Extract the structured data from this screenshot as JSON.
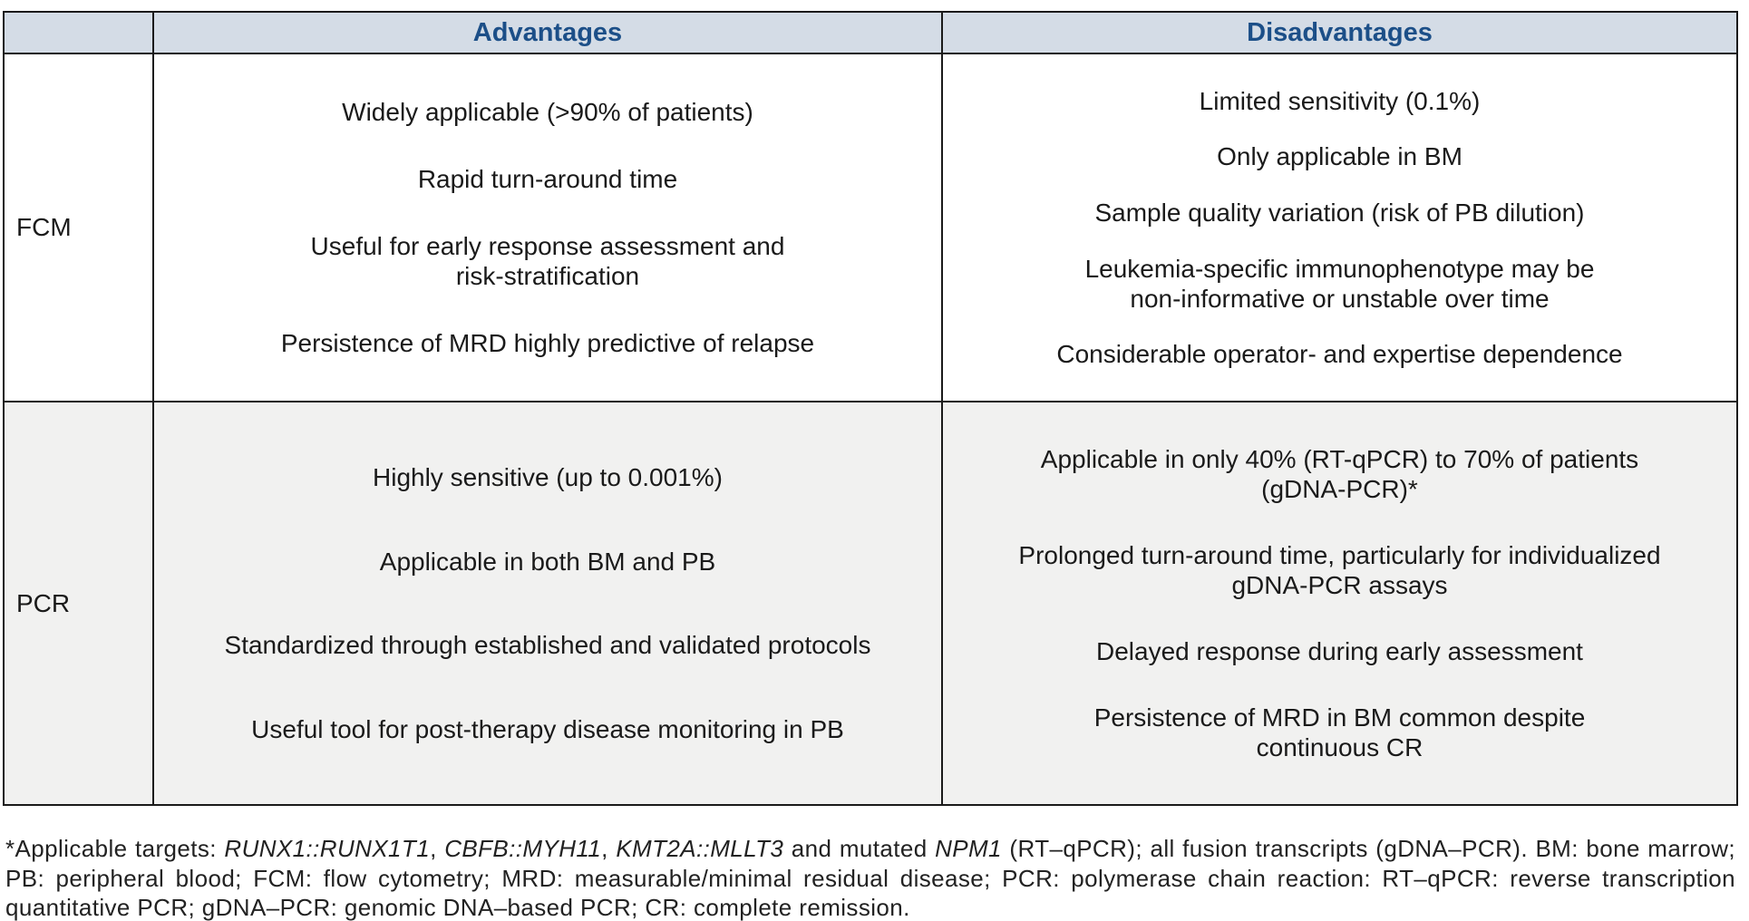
{
  "table": {
    "header": {
      "corner": "",
      "advantages": "Advantages",
      "disadvantages": "Disadvantages"
    },
    "rows": [
      {
        "label": "FCM",
        "advantages": [
          "Widely applicable (>90% of patients)",
          "Rapid turn-around time",
          "Useful for early response assessment and\nrisk-stratification",
          "Persistence of MRD highly predictive of relapse"
        ],
        "disadvantages": [
          "Limited sensitivity (0.1%)",
          "Only applicable in BM",
          "Sample quality variation (risk of PB dilution)",
          "Leukemia-specific immunophenotype may be\nnon-informative or unstable over time",
          "Considerable operator- and expertise dependence"
        ]
      },
      {
        "label": "PCR",
        "advantages": [
          "Highly sensitive (up to 0.001%)",
          "Applicable in both BM and PB",
          "Standardized through established and validated protocols",
          "Useful tool for post-therapy disease monitoring in PB"
        ],
        "disadvantages": [
          "Applicable in only 40% (RT-qPCR) to 70% of patients\n(gDNA-PCR)*",
          "Prolonged turn-around time, particularly for individualized\ngDNA-PCR assays",
          "Delayed response during early assessment",
          "Persistence of MRD in BM common despite\ncontinuous CR"
        ]
      }
    ]
  },
  "footnote": {
    "segments": [
      {
        "text": "*Applicable targets: ",
        "italic": false
      },
      {
        "text": "RUNX1::RUNX1T1",
        "italic": true
      },
      {
        "text": ", ",
        "italic": false
      },
      {
        "text": "CBFB::MYH11",
        "italic": true
      },
      {
        "text": ", ",
        "italic": false
      },
      {
        "text": "KMT2A::MLLT3",
        "italic": true
      },
      {
        "text": " and mutated ",
        "italic": false
      },
      {
        "text": "NPM1",
        "italic": true
      },
      {
        "text": " (RT–qPCR); all fusion transcripts (gDNA–PCR). BM: bone marrow; PB: peripheral blood; FCM: flow cytometry; MRD: measurable/minimal residual disease; PCR: polymerase chain reaction: RT–qPCR: reverse transcription quantitative PCR; gDNA–PCR: genomic DNA–based PCR; CR: complete remission.",
        "italic": false
      }
    ]
  },
  "colors": {
    "header_bg": "#d4dce6",
    "header_text": "#1c4f88",
    "alt_row_bg": "#f1f1f0",
    "border": "#1a1a1a",
    "body_text": "#1a1a1a"
  }
}
